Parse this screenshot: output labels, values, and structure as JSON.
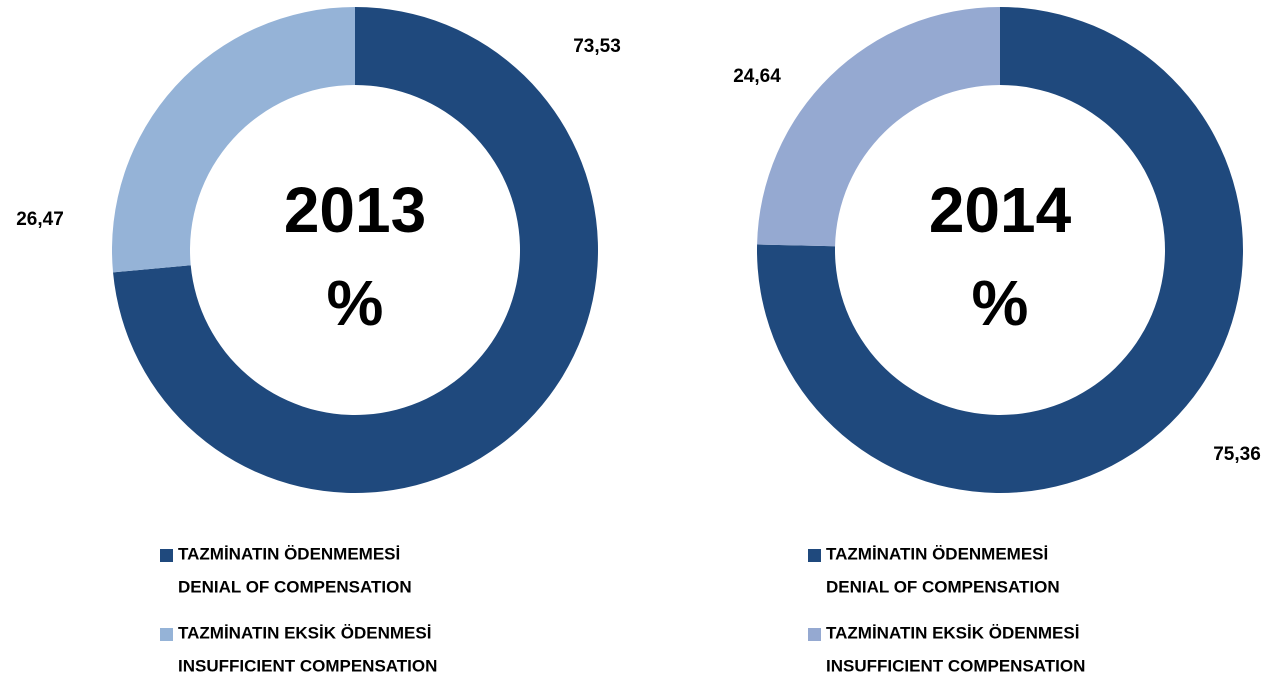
{
  "chart_data": [
    {
      "type": "donut",
      "title": "2013",
      "subtitle": "%",
      "categories": [
        [
          "TAZMİNATIN ÖDENMEMESİ",
          "DENIAL OF COMPENSATION"
        ],
        [
          "TAZMİNATIN EKSİK ÖDENMESİ",
          "INSUFFICIENT COMPENSATION"
        ]
      ],
      "values": [
        73.53,
        26.47
      ],
      "value_labels": [
        "73,53",
        "26,47"
      ],
      "colors": [
        "#1f497d",
        "#95b3d7"
      ],
      "legend": "bottom"
    },
    {
      "type": "donut",
      "title": "2014",
      "subtitle": "%",
      "categories": [
        [
          "TAZMİNATIN ÖDENMEMESİ",
          "DENIAL OF COMPENSATION"
        ],
        [
          "TAZMİNATIN EKSİK ÖDENMESİ",
          "INSUFFICIENT COMPENSATION"
        ]
      ],
      "values": [
        75.36,
        24.64
      ],
      "value_labels": [
        "75,36",
        "24,64"
      ],
      "colors": [
        "#1f497d",
        "#95a9d1"
      ],
      "legend": "bottom"
    }
  ]
}
